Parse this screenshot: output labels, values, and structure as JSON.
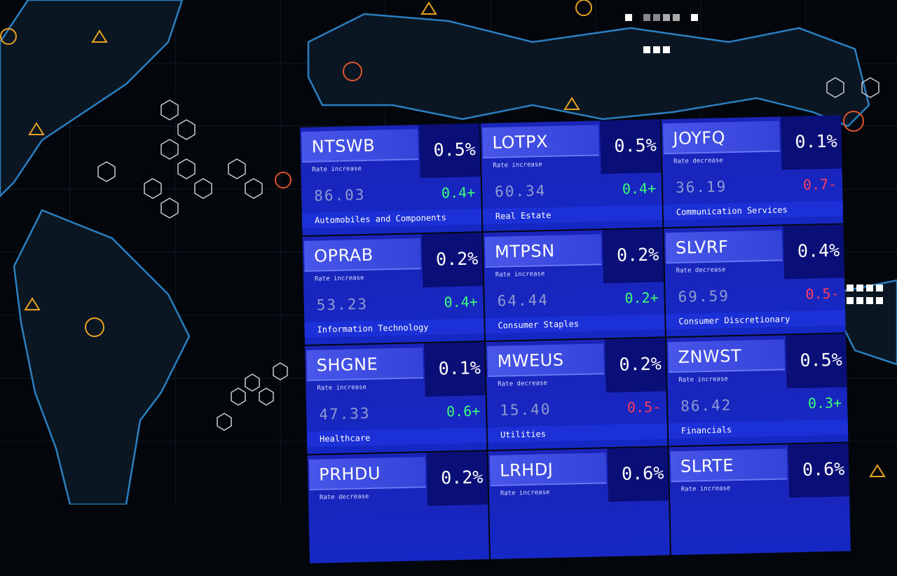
{
  "board": {
    "tiles": [
      {
        "ticker": "NTSWB",
        "percent": "0.5%",
        "direction": "Rate increase",
        "price": "86.03",
        "change": "0.4+",
        "sector": "Automobiles and Components"
      },
      {
        "ticker": "LOTPX",
        "percent": "0.5%",
        "direction": "Rate increase",
        "price": "60.34",
        "change": "0.4+",
        "sector": "Real Estate"
      },
      {
        "ticker": "JOYFQ",
        "percent": "0.1%",
        "direction": "Rate decrease",
        "price": "36.19",
        "change": "0.7-",
        "sector": "Communication Services"
      },
      {
        "ticker": "OPRAB",
        "percent": "0.2%",
        "direction": "Rate increase",
        "price": "53.23",
        "change": "0.4+",
        "sector": "Information Technology"
      },
      {
        "ticker": "MTPSN",
        "percent": "0.2%",
        "direction": "Rate increase",
        "price": "64.44",
        "change": "0.2+",
        "sector": "Consumer Staples"
      },
      {
        "ticker": "SLVRF",
        "percent": "0.4%",
        "direction": "Rate decrease",
        "price": "69.59",
        "change": "0.5-",
        "sector": "Consumer Discretionary"
      },
      {
        "ticker": "SHGNE",
        "percent": "0.1%",
        "direction": "Rate increase",
        "price": "47.33",
        "change": "0.6+",
        "sector": "Healthcare"
      },
      {
        "ticker": "MWEUS",
        "percent": "0.2%",
        "direction": "Rate decrease",
        "price": "15.40",
        "change": "0.5-",
        "sector": "Utilities"
      },
      {
        "ticker": "ZNWST",
        "percent": "0.5%",
        "direction": "Rate increase",
        "price": "86.42",
        "change": "0.3+",
        "sector": "Financials"
      },
      {
        "ticker": "PRHDU",
        "percent": "0.2%",
        "direction": "Rate decrease"
      },
      {
        "ticker": "LRHDJ",
        "percent": "0.6%",
        "direction": "Rate increase"
      },
      {
        "ticker": "SLRTE",
        "percent": "0.6%",
        "direction": "Rate increase"
      }
    ]
  }
}
